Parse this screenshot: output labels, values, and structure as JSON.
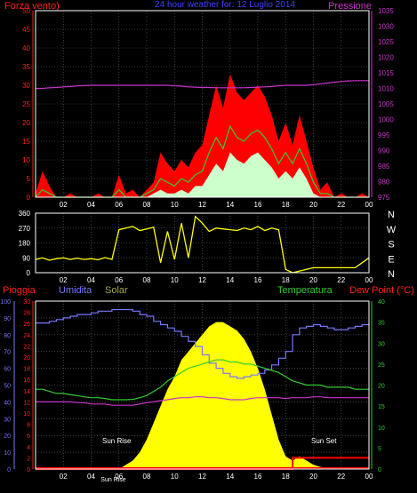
{
  "header": {
    "left": "Forza vento)",
    "center": "24 hour weather for: 12 Luglio 2014",
    "right": "Pressione"
  },
  "labels": {
    "pioggia": "Pioggia",
    "umidita": "Umidita",
    "solar": "Solar",
    "temperatura": "Temperatura",
    "dew": "Dew Point (°C)",
    "sunrise": "Sun Rise",
    "sunset": "Sun Set",
    "sunrise_axis": "Sun Rise"
  },
  "colors": {
    "axis_red": "#ff2020",
    "axis_magenta": "#cc33cc",
    "axis_blue": "#7777ff",
    "axis_green": "#33cc33",
    "axis_olive": "#a6a644",
    "wind_max": "#ff0000",
    "wind_avg": "#33cc33",
    "wind_min": "#ccffcc",
    "pressure": "#cc33cc",
    "direction": "#ffff00",
    "humidity": "#7777ff",
    "temperature": "#33cc33",
    "dewpoint": "#cc33cc",
    "solar": "#ffff00",
    "rain": "#ff0000",
    "grid": "#666666"
  },
  "chart_data": [
    {
      "id": "wind",
      "type": "area",
      "xlabel": "",
      "ylabel": "Forza vento)",
      "x_ticks": [
        "02",
        "04",
        "06",
        "08",
        "10",
        "12",
        "14",
        "16",
        "18",
        "20",
        "22",
        "00"
      ],
      "left_ticks": [
        0,
        5,
        10,
        15,
        20,
        25,
        30,
        35,
        40,
        45,
        50
      ],
      "right_ticks": [
        975,
        980,
        985,
        990,
        995,
        1000,
        1005,
        1010,
        1015,
        1020,
        1025,
        1030,
        1035
      ],
      "ylim": [
        0,
        50
      ],
      "ylim_right": [
        975,
        1035
      ],
      "hours": [
        0,
        0.5,
        1,
        1.5,
        2,
        2.5,
        3,
        3.5,
        4,
        4.5,
        5,
        5.5,
        6,
        6.5,
        7,
        7.5,
        8,
        8.5,
        9,
        9.5,
        10,
        10.5,
        11,
        11.5,
        12,
        12.5,
        13,
        13.5,
        14,
        14.5,
        15,
        15.5,
        16,
        16.5,
        17,
        17.5,
        18,
        18.5,
        19,
        19.5,
        20,
        20.5,
        21,
        21.5,
        22,
        22.5,
        23,
        23.5,
        24
      ],
      "series": [
        {
          "name": "max",
          "values": [
            1,
            7,
            3,
            0,
            0,
            1,
            0,
            0,
            0,
            1,
            0,
            0,
            6,
            1,
            2,
            0,
            2,
            4,
            12,
            9,
            7,
            10,
            8,
            12,
            14,
            22,
            30,
            24,
            33,
            28,
            26,
            28,
            30,
            27,
            22,
            15,
            20,
            14,
            22,
            15,
            8,
            2,
            4,
            0,
            1,
            0,
            0,
            1,
            0
          ]
        },
        {
          "name": "avg",
          "values": [
            0,
            2,
            1,
            0,
            0,
            0,
            0,
            0,
            0,
            0,
            0,
            0,
            2,
            0,
            0,
            0,
            1,
            2,
            5,
            4,
            3,
            5,
            4,
            6,
            7,
            12,
            16,
            13,
            19,
            16,
            15,
            17,
            18,
            16,
            13,
            9,
            12,
            9,
            13,
            9,
            4,
            1,
            1,
            0,
            0,
            0,
            0,
            0,
            0
          ]
        },
        {
          "name": "min",
          "values": [
            0,
            0,
            0,
            0,
            0,
            0,
            0,
            0,
            0,
            0,
            0,
            0,
            0,
            0,
            0,
            0,
            0,
            1,
            2,
            1,
            1,
            2,
            1,
            3,
            3,
            6,
            9,
            7,
            12,
            10,
            9,
            11,
            12,
            10,
            8,
            5,
            7,
            5,
            8,
            5,
            1,
            0,
            0,
            0,
            0,
            0,
            0,
            0,
            0
          ]
        },
        {
          "name": "pressure",
          "values": [
            1010,
            1010,
            1010.2,
            1010.3,
            1010.5,
            1010.6,
            1010.8,
            1010.9,
            1011,
            1011,
            1011,
            1011,
            1011,
            1011,
            1011,
            1011,
            1011,
            1011,
            1011,
            1011,
            1010.8,
            1010.7,
            1010.5,
            1010.4,
            1010.3,
            1010.3,
            1010.2,
            1010.2,
            1010.2,
            1010.2,
            1010.2,
            1010.3,
            1010.4,
            1010.5,
            1010.6,
            1010.8,
            1011,
            1011,
            1011,
            1011,
            1011.2,
            1011.5,
            1011.7,
            1012,
            1012.2,
            1012.4,
            1012.5,
            1012.5,
            1012.5
          ]
        }
      ]
    },
    {
      "id": "direction",
      "type": "line",
      "ylabel": "",
      "left_ticks": [
        0,
        90,
        180,
        270,
        360
      ],
      "right_ticks": [
        "N",
        "W",
        "S",
        "E",
        "N"
      ],
      "ylim": [
        0,
        360
      ],
      "hours": [
        0,
        0.5,
        1,
        1.5,
        2,
        2.5,
        3,
        3.5,
        4,
        4.5,
        5,
        5.5,
        6,
        6.5,
        7,
        7.5,
        8,
        8.5,
        9,
        9.5,
        10,
        10.5,
        11,
        11.5,
        12,
        12.5,
        13,
        13.5,
        14,
        14.5,
        15,
        15.5,
        16,
        16.5,
        17,
        17.5,
        18,
        18.5,
        19,
        19.5,
        20,
        20.5,
        21,
        21.5,
        22,
        22.5,
        23,
        23.5,
        24
      ],
      "values": [
        80,
        90,
        75,
        85,
        90,
        80,
        88,
        80,
        85,
        78,
        92,
        80,
        260,
        270,
        280,
        255,
        265,
        275,
        60,
        250,
        80,
        300,
        90,
        340,
        300,
        250,
        270,
        265,
        260,
        255,
        270,
        260,
        280,
        255,
        270,
        260,
        20,
        0,
        10,
        20,
        30,
        30,
        30,
        30,
        30,
        30,
        30,
        60,
        90
      ]
    },
    {
      "id": "weather",
      "type": "line",
      "ylabel": "Pioggia",
      "left_ticks": [
        0,
        10,
        20,
        30,
        40,
        50,
        60,
        70,
        80,
        90,
        100
      ],
      "mid_ticks": [
        0,
        2,
        4,
        6,
        8,
        10,
        12,
        14,
        16,
        18,
        20,
        22,
        24,
        26,
        28,
        30
      ],
      "right_ticks": [
        0,
        5,
        10,
        15,
        20,
        25,
        30,
        35,
        40
      ],
      "ylim": [
        0,
        100
      ],
      "ylim_temp": [
        0,
        40
      ],
      "ylim_rain": [
        0,
        30
      ],
      "hours": [
        0,
        0.5,
        1,
        1.5,
        2,
        2.5,
        3,
        3.5,
        4,
        4.5,
        5,
        5.5,
        6,
        6.5,
        7,
        7.5,
        8,
        8.5,
        9,
        9.5,
        10,
        10.5,
        11,
        11.5,
        12,
        12.5,
        13,
        13.5,
        14,
        14.5,
        15,
        15.5,
        16,
        16.5,
        17,
        17.5,
        18,
        18.5,
        19,
        19.5,
        20,
        20.5,
        21,
        21.5,
        22,
        22.5,
        23,
        23.5,
        24
      ],
      "series": [
        {
          "name": "Umidita",
          "values": [
            87,
            87,
            88,
            89,
            90,
            91,
            92,
            92,
            93,
            94,
            94,
            95,
            95,
            95,
            94,
            92,
            91,
            88,
            86,
            84,
            82,
            79,
            76,
            73,
            68,
            63,
            60,
            57,
            55,
            54,
            55,
            56,
            57,
            59,
            62,
            66,
            70,
            80,
            84,
            85,
            86,
            85,
            84,
            83,
            83,
            84,
            85,
            86,
            87
          ]
        },
        {
          "name": "Temperatura",
          "values": [
            19,
            19,
            18.5,
            18,
            18,
            17.7,
            17.5,
            17.2,
            17,
            17,
            16.8,
            16.5,
            16.5,
            16.5,
            16.6,
            17,
            17.5,
            18.5,
            19.5,
            21,
            22,
            23,
            24,
            24.5,
            25,
            25.5,
            26,
            26,
            25.5,
            25.5,
            25,
            25,
            24.5,
            24,
            23.5,
            23,
            22,
            21,
            20.5,
            20,
            20,
            20,
            19.5,
            19.5,
            19.5,
            19.5,
            19,
            19,
            19
          ]
        },
        {
          "name": "Dew Point",
          "values": [
            16,
            16,
            16,
            16,
            16,
            16,
            15.8,
            15.8,
            15.5,
            15.5,
            15.5,
            15.2,
            15.2,
            15.2,
            15.2,
            15.5,
            15.8,
            16,
            16.3,
            16.5,
            16.8,
            17,
            17,
            17.2,
            17.2,
            17,
            17,
            16.8,
            16.5,
            16.5,
            16.5,
            16.8,
            17,
            17,
            17,
            17,
            16.8,
            17,
            17,
            17,
            17.2,
            17.2,
            17,
            17,
            17,
            17,
            17,
            17,
            17
          ]
        },
        {
          "name": "Solar",
          "values": [
            0,
            0,
            0,
            0,
            0,
            0,
            0,
            0,
            0,
            0,
            0,
            0,
            0,
            1,
            2,
            4,
            7,
            11,
            15,
            19,
            22,
            26,
            28,
            30,
            32,
            34,
            35,
            35,
            34,
            33,
            31,
            28,
            24,
            19,
            13,
            7,
            3,
            2,
            3,
            2,
            1,
            0.5,
            0.3,
            0,
            0,
            0,
            0,
            0,
            0
          ]
        },
        {
          "name": "Pioggia",
          "values": [
            0,
            0,
            0,
            0,
            0,
            0,
            0,
            0,
            0,
            0,
            0,
            0,
            0,
            0,
            0,
            0,
            0,
            0,
            0,
            0,
            0,
            0,
            0,
            0,
            0,
            0,
            0,
            0,
            0,
            0,
            0,
            0,
            0,
            0,
            0,
            0,
            0,
            2,
            2,
            2,
            2,
            2,
            2,
            2,
            2,
            2,
            2,
            2,
            2
          ]
        }
      ],
      "x_ticks": [
        "02",
        "04",
        "06",
        "08",
        "10",
        "12",
        "14",
        "16",
        "18",
        "20",
        "22",
        "00"
      ]
    }
  ]
}
